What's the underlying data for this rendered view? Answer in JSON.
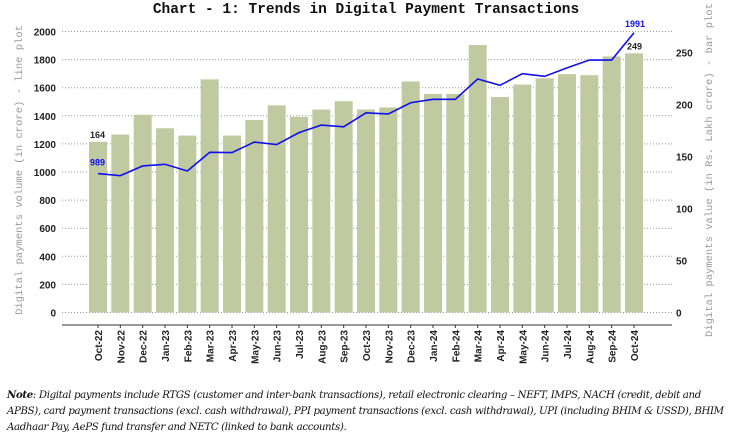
{
  "chart_data": {
    "type": "bar+line",
    "title": "Chart - 1: Trends in Digital Payment Transactions",
    "ylabel_left": "Digital payments volume (in crore) - line plot",
    "ylabel_right": "Digital payments value (in Rs. Lakh crore) - bar plot",
    "categories": [
      "Oct-22",
      "Nov-22",
      "Dec-22",
      "Jan-23",
      "Feb-23",
      "Mar-23",
      "Apr-23",
      "May-23",
      "Jun-23",
      "Jul-23",
      "Aug-23",
      "Sep-23",
      "Oct-23",
      "Nov-23",
      "Dec-23",
      "Jan-24",
      "Feb-24",
      "Mar-24",
      "Apr-24",
      "May-24",
      "Jun-24",
      "Jul-24",
      "Aug-24",
      "Sep-24",
      "Oct-24"
    ],
    "series": [
      {
        "name": "Digital payments value (Rs. Lakh crore)",
        "type": "bar",
        "axis": "right",
        "color": "#c0c9a0",
        "values": [
          164,
          171,
          190,
          177,
          170,
          224,
          170,
          185,
          199,
          188,
          195,
          203,
          195,
          197,
          222,
          210,
          210,
          257,
          207,
          219,
          225,
          229,
          228,
          246,
          249
        ]
      },
      {
        "name": "Digital payments volume (crore)",
        "type": "line",
        "axis": "left",
        "color": "#1010ee",
        "values": [
          989,
          974,
          1043,
          1055,
          1007,
          1140,
          1138,
          1213,
          1195,
          1280,
          1334,
          1322,
          1421,
          1413,
          1493,
          1517,
          1517,
          1662,
          1617,
          1700,
          1681,
          1741,
          1797,
          1797,
          1991
        ]
      }
    ],
    "data_labels": {
      "bar_first": "164",
      "line_first": "989",
      "bar_last": "249",
      "line_last": "1991"
    },
    "yleft": {
      "range": [
        0,
        2000
      ],
      "ticks": [
        "0",
        "200",
        "400",
        "600",
        "800",
        "1000",
        "1200",
        "1400",
        "1600",
        "1800",
        "2000"
      ]
    },
    "yright": {
      "range": [
        0,
        270
      ],
      "ticks": [
        "0",
        "50",
        "100",
        "150",
        "200",
        "250"
      ]
    },
    "grid": true
  },
  "note": {
    "label": "Note",
    "text": ": Digital payments include RTGS (customer and inter-bank transactions), retail electronic clearing – NEFT, IMPS, NACH (credit, debit and APBS), card payment transactions (excl. cash withdrawal), PPI payment transactions (excl. cash withdrawal), UPI (including BHIM & USSD), BHIM Aadhaar Pay, AePS fund transfer and NETC (linked to bank accounts)."
  }
}
